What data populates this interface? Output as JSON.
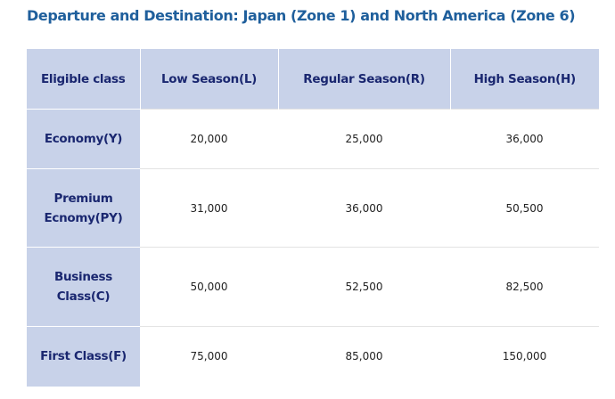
{
  "title": "Departure and Destination: Japan (Zone 1) and North America (Zone 6)",
  "table": {
    "header": [
      "Eligible class",
      "Low Season(L)",
      "Regular Season(R)",
      "High Season(H)"
    ],
    "rows": [
      [
        "Economy(Y)",
        "20,000",
        "25,000",
        "36,000"
      ],
      [
        "Premium Ecnomy(PY)",
        "31,000",
        "36,000",
        "50,500"
      ],
      [
        "Business Class(C)",
        "50,000",
        "52,500",
        "82,500"
      ],
      [
        "First Class(F)",
        "75,000",
        "85,000",
        "150,000"
      ]
    ]
  }
}
